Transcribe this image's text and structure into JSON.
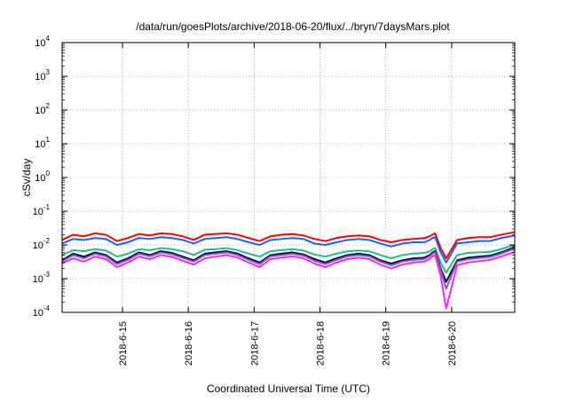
{
  "chart_data": {
    "type": "line",
    "title": "/data/run/goesPlots/archive/2018-06-20/flux/../bryn/7daysMars.plot",
    "xlabel": "Coordinated Universal Time (UTC)",
    "ylabel": "cSv/day",
    "y_scale": "log",
    "ylim": [
      0.0001,
      10000
    ],
    "y_ticks": [
      {
        "value": 0.0001,
        "base": "10",
        "exp": "-4"
      },
      {
        "value": 0.001,
        "base": "10",
        "exp": "-3"
      },
      {
        "value": 0.01,
        "base": "10",
        "exp": "-2"
      },
      {
        "value": 0.1,
        "base": "10",
        "exp": "-1"
      },
      {
        "value": 1,
        "base": "10",
        "exp": "0"
      },
      {
        "value": 10,
        "base": "10",
        "exp": "1"
      },
      {
        "value": 100,
        "base": "10",
        "exp": "2"
      },
      {
        "value": 1000,
        "base": "10",
        "exp": "3"
      },
      {
        "value": 10000,
        "base": "10",
        "exp": "4"
      }
    ],
    "xlim": [
      "2018-06-14 02:00",
      "2018-06-20 23:00"
    ],
    "x_ticks": [
      {
        "value": "2018-06-15",
        "label": "2018-6-15"
      },
      {
        "value": "2018-06-16",
        "label": "2018-6-16"
      },
      {
        "value": "2018-06-17",
        "label": "2018-6-17"
      },
      {
        "value": "2018-06-18",
        "label": "2018-6-18"
      },
      {
        "value": "2018-06-19",
        "label": "2018-6-19"
      },
      {
        "value": "2018-06-20",
        "label": "2018-6-20"
      }
    ],
    "grid": true,
    "legend": "none",
    "x": [
      "2018-06-14 02:00",
      "2018-06-14 06:00",
      "2018-06-14 10:00",
      "2018-06-14 14:00",
      "2018-06-14 18:00",
      "2018-06-14 22:00",
      "2018-06-15 02:00",
      "2018-06-15 06:00",
      "2018-06-15 10:00",
      "2018-06-15 14:00",
      "2018-06-15 18:00",
      "2018-06-15 22:00",
      "2018-06-16 02:00",
      "2018-06-16 06:00",
      "2018-06-16 10:00",
      "2018-06-16 14:00",
      "2018-06-16 18:00",
      "2018-06-16 22:00",
      "2018-06-17 02:00",
      "2018-06-17 06:00",
      "2018-06-17 10:00",
      "2018-06-17 14:00",
      "2018-06-17 18:00",
      "2018-06-17 22:00",
      "2018-06-18 02:00",
      "2018-06-18 06:00",
      "2018-06-18 10:00",
      "2018-06-18 14:00",
      "2018-06-18 18:00",
      "2018-06-18 22:00",
      "2018-06-19 02:00",
      "2018-06-19 06:00",
      "2018-06-19 10:00",
      "2018-06-19 14:00",
      "2018-06-19 16:00",
      "2018-06-19 17:00",
      "2018-06-19 18:00",
      "2018-06-19 20:00",
      "2018-06-19 22:00",
      "2018-06-20 02:00",
      "2018-06-20 06:00",
      "2018-06-20 10:00",
      "2018-06-20 14:00",
      "2018-06-20 18:00",
      "2018-06-20 23:00"
    ],
    "series": [
      {
        "color": "#ff0000",
        "values": [
          0.014,
          0.02,
          0.018,
          0.022,
          0.02,
          0.013,
          0.016,
          0.021,
          0.019,
          0.022,
          0.021,
          0.018,
          0.014,
          0.02,
          0.021,
          0.022,
          0.02,
          0.016,
          0.013,
          0.018,
          0.02,
          0.021,
          0.019,
          0.015,
          0.013,
          0.016,
          0.018,
          0.019,
          0.018,
          0.014,
          0.012,
          0.014,
          0.015,
          0.016,
          0.018,
          0.02,
          0.022,
          0.008,
          0.004,
          0.014,
          0.016,
          0.017,
          0.017,
          0.02,
          0.024
        ]
      },
      {
        "color": "#1a60ff",
        "values": [
          0.011,
          0.015,
          0.014,
          0.016,
          0.015,
          0.01,
          0.012,
          0.016,
          0.015,
          0.017,
          0.016,
          0.014,
          0.011,
          0.015,
          0.016,
          0.017,
          0.015,
          0.012,
          0.01,
          0.014,
          0.015,
          0.016,
          0.015,
          0.011,
          0.01,
          0.012,
          0.014,
          0.015,
          0.014,
          0.011,
          0.009,
          0.011,
          0.012,
          0.012,
          0.014,
          0.016,
          0.017,
          0.006,
          0.003,
          0.011,
          0.012,
          0.013,
          0.013,
          0.016,
          0.019
        ]
      },
      {
        "color": "#20c080",
        "values": [
          0.005,
          0.007,
          0.0065,
          0.0075,
          0.0068,
          0.0045,
          0.0055,
          0.0075,
          0.007,
          0.008,
          0.0075,
          0.0065,
          0.005,
          0.0072,
          0.0075,
          0.008,
          0.007,
          0.0055,
          0.0045,
          0.0065,
          0.007,
          0.0075,
          0.0068,
          0.0052,
          0.0045,
          0.0055,
          0.0065,
          0.0068,
          0.0065,
          0.005,
          0.004,
          0.005,
          0.0055,
          0.0058,
          0.0065,
          0.0075,
          0.008,
          0.003,
          0.0015,
          0.005,
          0.0058,
          0.006,
          0.0062,
          0.0075,
          0.01
        ]
      },
      {
        "color": "#000060",
        "values": [
          0.0035,
          0.0055,
          0.0045,
          0.006,
          0.005,
          0.003,
          0.004,
          0.006,
          0.005,
          0.0065,
          0.0058,
          0.0045,
          0.0035,
          0.0055,
          0.006,
          0.0065,
          0.0055,
          0.004,
          0.003,
          0.005,
          0.0055,
          0.006,
          0.0052,
          0.0038,
          0.003,
          0.004,
          0.005,
          0.0055,
          0.005,
          0.0035,
          0.0028,
          0.0035,
          0.004,
          0.0042,
          0.005,
          0.006,
          0.0065,
          0.002,
          0.0008,
          0.0035,
          0.0042,
          0.0045,
          0.0048,
          0.006,
          0.0085
        ]
      },
      {
        "color": "#8060a0",
        "values": [
          0.0032,
          0.005,
          0.004,
          0.0055,
          0.0046,
          0.0027,
          0.0036,
          0.0055,
          0.0046,
          0.006,
          0.0053,
          0.0041,
          0.0032,
          0.005,
          0.0055,
          0.006,
          0.005,
          0.0036,
          0.0027,
          0.0046,
          0.005,
          0.0055,
          0.0048,
          0.0034,
          0.0027,
          0.0036,
          0.0046,
          0.005,
          0.0046,
          0.0032,
          0.0025,
          0.0032,
          0.0036,
          0.0038,
          0.0046,
          0.0055,
          0.006,
          0.0018,
          0.0005,
          0.0032,
          0.0038,
          0.0041,
          0.0044,
          0.0055,
          0.0078
        ]
      },
      {
        "color": "#ff20ff",
        "values": [
          0.0028,
          0.004,
          0.0032,
          0.0045,
          0.0038,
          0.0022,
          0.003,
          0.0045,
          0.0038,
          0.005,
          0.0044,
          0.0034,
          0.0026,
          0.004,
          0.0045,
          0.005,
          0.0042,
          0.003,
          0.0022,
          0.0038,
          0.0042,
          0.0046,
          0.004,
          0.0028,
          0.0022,
          0.003,
          0.0038,
          0.0042,
          0.0038,
          0.0026,
          0.002,
          0.0026,
          0.003,
          0.0032,
          0.0038,
          0.0046,
          0.005,
          0.0012,
          0.00013,
          0.0025,
          0.003,
          0.0033,
          0.0036,
          0.0045,
          0.0062
        ]
      }
    ]
  }
}
